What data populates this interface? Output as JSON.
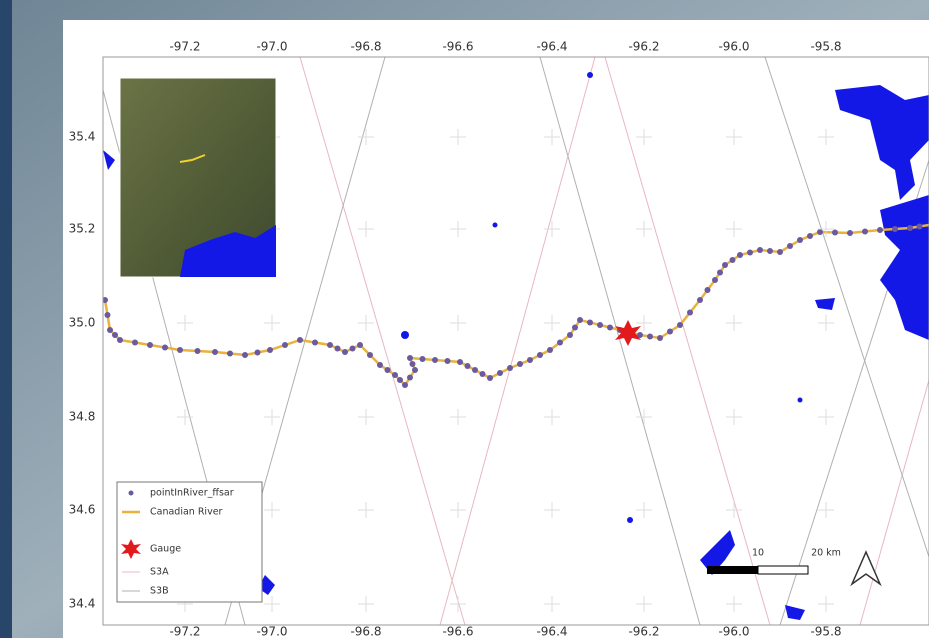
{
  "map": {
    "top_ticks": [
      "-97.2",
      "-97.0",
      "-96.8",
      "-96.6",
      "-96.4",
      "-96.2",
      "-96.0",
      "-95.8"
    ],
    "bottom_ticks": [
      "-97.2",
      "-97.0",
      "-96.8",
      "-96.6",
      "-96.4",
      "-96.2",
      "-96.0",
      "-95.8"
    ],
    "left_ticks": [
      "35.4",
      "35.2",
      "35.0",
      "34.8",
      "34.6",
      "34.4"
    ],
    "legend": [
      "pointInRiver_ffsar",
      "Canadian River",
      "Gauge",
      "S3A",
      "S3B"
    ],
    "scale_bar": [
      "10",
      "20 km"
    ]
  }
}
